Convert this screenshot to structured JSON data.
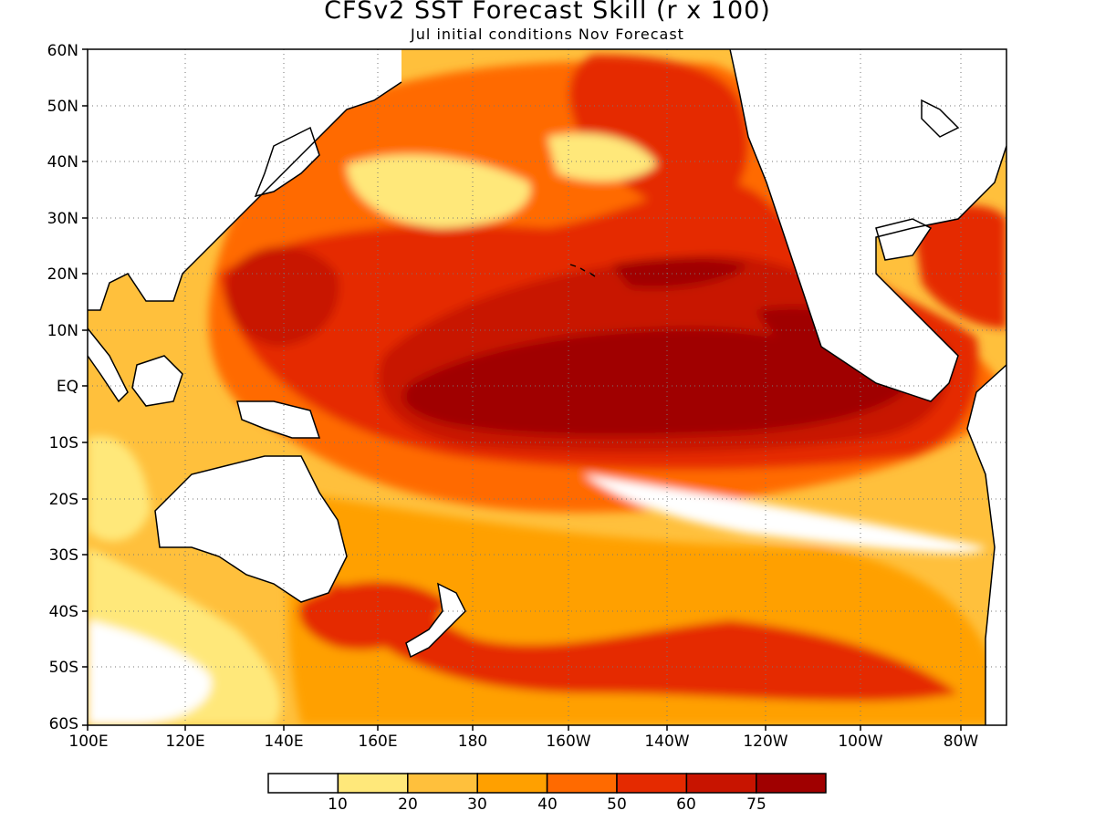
{
  "title": "CFSv2 SST Forecast Skill (r x 100)",
  "subtitle": "Jul initial conditions   Nov Forecast",
  "lat_labels": [
    "60N",
    "50N",
    "40N",
    "30N",
    "20N",
    "10N",
    "EQ",
    "10S",
    "20S",
    "30S",
    "40S",
    "50S",
    "60S"
  ],
  "lon_labels": [
    "100E",
    "120E",
    "140E",
    "160E",
    "180",
    "160W",
    "140W",
    "120W",
    "100W",
    "80W"
  ],
  "colorbar": {
    "colors": [
      "#ffffff",
      "#ffe87a",
      "#ffc03c",
      "#ffa000",
      "#ff6a00",
      "#e52a00",
      "#c81400",
      "#a00000"
    ],
    "labels": [
      "10",
      "20",
      "30",
      "40",
      "50",
      "60",
      "75"
    ]
  },
  "palette": {
    "land": "#ffffff",
    "coast": "#000000"
  }
}
